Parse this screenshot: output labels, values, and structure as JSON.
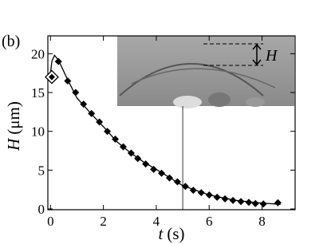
{
  "chart_data": {
    "type": "scatter",
    "panel_label": "(b)",
    "x_label": {
      "symbol": "t",
      "unit": "(s)"
    },
    "y_label": {
      "symbol": "H",
      "unit": "(μm)"
    },
    "inset_label": "H",
    "xlim": [
      -0.1,
      9.25
    ],
    "ylim": [
      -0.1,
      22.3
    ],
    "xticks": [
      0,
      2,
      4,
      6,
      8
    ],
    "yticks": [
      0,
      5,
      10,
      15,
      20
    ],
    "marker_color": "#000000",
    "x": [
      0.3,
      0.65,
      0.95,
      1.25,
      1.55,
      1.85,
      2.15,
      2.45,
      2.75,
      3.05,
      3.3,
      3.6,
      3.9,
      4.2,
      4.5,
      4.8,
      5.1,
      5.4,
      5.7,
      6.0,
      6.3,
      6.6,
      6.9,
      7.2,
      7.5,
      7.75,
      8.05,
      8.6
    ],
    "values": [
      19.0,
      16.5,
      15.0,
      13.5,
      12.3,
      11.2,
      10.0,
      9.0,
      8.0,
      7.2,
      6.5,
      5.8,
      5.1,
      4.6,
      4.0,
      3.5,
      2.9,
      2.4,
      2.1,
      1.8,
      1.5,
      1.3,
      1.1,
      0.95,
      0.85,
      0.7,
      0.65,
      0.8
    ],
    "initial_point": {
      "x": 0.05,
      "y": 17.0
    },
    "curve": {
      "x": [
        0,
        0.05,
        0.15,
        0.3,
        0.6,
        1,
        1.5,
        2,
        2.5,
        3,
        3.5,
        4,
        5,
        6,
        7,
        8,
        8.7
      ],
      "values": [
        17.5,
        19.0,
        19.8,
        19.2,
        17.0,
        14.3,
        12.4,
        10.6,
        8.7,
        7.3,
        6.1,
        5.1,
        3.0,
        1.8,
        1.1,
        0.75,
        0.6
      ]
    },
    "vline_x": 5
  }
}
